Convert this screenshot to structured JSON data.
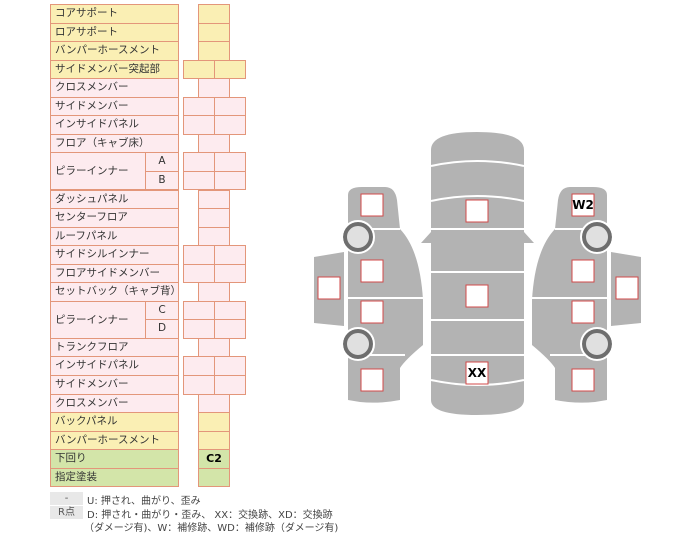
{
  "rows": [
    {
      "label": "コアサポート",
      "color": "y",
      "boxes": 1,
      "value": ""
    },
    {
      "label": "ロアサポート",
      "color": "y",
      "boxes": 1,
      "value": ""
    },
    {
      "label": "バンパーホースメント",
      "color": "y",
      "boxes": 1,
      "value": ""
    },
    {
      "label": "サイドメンバー突起部",
      "color": "y",
      "boxes": 2,
      "value": ""
    },
    {
      "label": "クロスメンバー",
      "color": "p",
      "boxes": 1,
      "value": ""
    },
    {
      "label": "サイドメンバー",
      "color": "p",
      "boxes": 2,
      "value": ""
    },
    {
      "label": "インサイドパネル",
      "color": "p",
      "boxes": 2,
      "value": ""
    },
    {
      "label": "フロア（キャブ床）",
      "color": "p",
      "boxes": 1,
      "value": ""
    },
    {
      "label": "ピラーインナー",
      "sub": "A",
      "color": "p",
      "boxes": 2,
      "value": ""
    },
    {
      "label": "ピラーインナー",
      "sub": "B",
      "color": "p",
      "boxes": 2,
      "value": ""
    },
    {
      "label": "ダッシュパネル",
      "color": "p",
      "boxes": 1,
      "value": ""
    },
    {
      "label": "センターフロア",
      "color": "p",
      "boxes": 1,
      "value": ""
    },
    {
      "label": "ルーフパネル",
      "color": "p",
      "boxes": 1,
      "value": ""
    },
    {
      "label": "サイドシルインナー",
      "color": "p",
      "boxes": 2,
      "value": ""
    },
    {
      "label": "フロアサイドメンバー",
      "color": "p",
      "boxes": 2,
      "value": ""
    },
    {
      "label": "セットバック（キャブ背）",
      "color": "p",
      "boxes": 1,
      "value": ""
    },
    {
      "label": "ピラーインナー",
      "sub": "C",
      "color": "p",
      "boxes": 2,
      "value": ""
    },
    {
      "label": "ピラーインナー",
      "sub": "D",
      "color": "p",
      "boxes": 2,
      "value": ""
    },
    {
      "label": "トランクフロア",
      "color": "p",
      "boxes": 1,
      "value": ""
    },
    {
      "label": "インサイドパネル",
      "color": "p",
      "boxes": 2,
      "value": ""
    },
    {
      "label": "サイドメンバー",
      "color": "p",
      "boxes": 2,
      "value": ""
    },
    {
      "label": "クロスメンバー",
      "color": "p",
      "boxes": 1,
      "value": ""
    },
    {
      "label": "バックパネル",
      "color": "y",
      "boxes": 1,
      "value": ""
    },
    {
      "label": "バンパーホースメント",
      "color": "y",
      "boxes": 1,
      "value": ""
    },
    {
      "label": "下回り",
      "color": "g",
      "boxes": 1,
      "value": "C2"
    },
    {
      "label": "指定塗装",
      "color": "g",
      "boxes": 1,
      "value": ""
    }
  ],
  "legend": [
    {
      "key": "-",
      "text": "U: 押され、曲がり、歪み"
    },
    {
      "key": "R点",
      "text": "D: 押され・曲がり・歪み、 XX：交換跡、XD：交換跡",
      "text2": "（ダメージ有)、W：補修跡、WD：補修跡（ダメージ有)"
    }
  ],
  "diagram": {
    "center_marks": [
      "",
      "",
      "XX"
    ],
    "left_marks": [
      "",
      "",
      "",
      "",
      ""
    ],
    "right_marks": [
      "W2",
      "",
      "",
      "",
      ""
    ]
  },
  "colors": {
    "body": "#b3b3b3",
    "box_border": "#d04848",
    "wheel": "#6e6e6e",
    "wheel_hub": "#e0e0e0"
  }
}
